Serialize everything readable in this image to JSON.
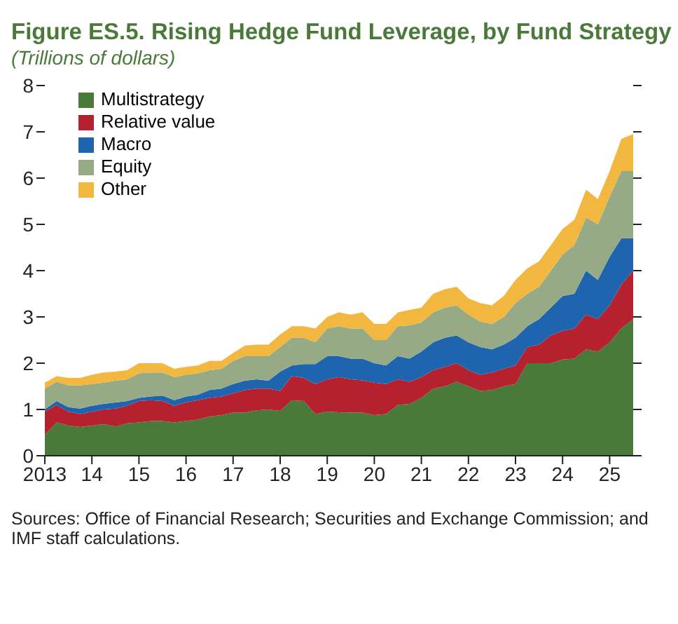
{
  "chart_data": {
    "type": "area",
    "title": "Figure ES.5. Rising Hedge Fund Leverage, by Fund Strategy",
    "subtitle": "(Trillions of dollars)",
    "annotations": [
      "Sources: Office of Financial Research; Securities and Exchange Commission; and IMF staff calculations."
    ],
    "stacked": true,
    "legend": "top left",
    "grid": false,
    "x": [
      2013,
      2013.25,
      2013.5,
      2013.75,
      2014,
      2014.25,
      2014.5,
      2014.75,
      2015,
      2015.25,
      2015.5,
      2015.75,
      2016,
      2016.25,
      2016.5,
      2016.75,
      2017,
      2017.25,
      2017.5,
      2017.75,
      2018,
      2018.25,
      2018.5,
      2018.75,
      2019,
      2019.25,
      2019.5,
      2019.75,
      2020,
      2020.25,
      2020.5,
      2020.75,
      2021,
      2021.25,
      2021.5,
      2021.75,
      2022,
      2022.25,
      2022.5,
      2022.75,
      2023,
      2023.25,
      2023.5,
      2023.75,
      2024,
      2024.25,
      2024.5,
      2024.75,
      2025,
      2025.25,
      2025.5
    ],
    "xlim": [
      2013,
      2025.5
    ],
    "xticks": [
      {
        "value": 2013,
        "label": "2013"
      },
      {
        "value": 2014,
        "label": "14"
      },
      {
        "value": 2015,
        "label": "15"
      },
      {
        "value": 2016,
        "label": "16"
      },
      {
        "value": 2017,
        "label": "17"
      },
      {
        "value": 2018,
        "label": "18"
      },
      {
        "value": 2019,
        "label": "19"
      },
      {
        "value": 2020,
        "label": "20"
      },
      {
        "value": 2021,
        "label": "21"
      },
      {
        "value": 2022,
        "label": "22"
      },
      {
        "value": 2023,
        "label": "23"
      },
      {
        "value": 2024,
        "label": "24"
      },
      {
        "value": 2025,
        "label": "25"
      }
    ],
    "ylim": [
      0,
      8
    ],
    "yticks": [
      0,
      1,
      2,
      3,
      4,
      5,
      6,
      7,
      8
    ],
    "series": [
      {
        "name": "Multistrategy",
        "color": "#4a7a3a",
        "values": [
          0.45,
          0.72,
          0.65,
          0.62,
          0.65,
          0.68,
          0.63,
          0.7,
          0.72,
          0.75,
          0.75,
          0.72,
          0.75,
          0.78,
          0.85,
          0.88,
          0.93,
          0.93,
          0.98,
          1.0,
          0.97,
          1.2,
          1.18,
          0.9,
          0.95,
          0.94,
          0.93,
          0.93,
          0.88,
          0.9,
          1.1,
          1.12,
          1.25,
          1.45,
          1.5,
          1.6,
          1.5,
          1.4,
          1.42,
          1.5,
          1.55,
          2.0,
          2.0,
          2.0,
          2.08,
          2.1,
          2.3,
          2.25,
          2.45,
          2.75,
          2.95
        ]
      },
      {
        "name": "Relative value",
        "color": "#b5212e",
        "values": [
          0.5,
          0.38,
          0.3,
          0.28,
          0.3,
          0.32,
          0.39,
          0.38,
          0.46,
          0.45,
          0.43,
          0.36,
          0.4,
          0.42,
          0.4,
          0.4,
          0.42,
          0.49,
          0.47,
          0.45,
          0.43,
          0.52,
          0.5,
          0.65,
          0.7,
          0.76,
          0.72,
          0.7,
          0.7,
          0.65,
          0.55,
          0.48,
          0.45,
          0.4,
          0.42,
          0.4,
          0.35,
          0.35,
          0.38,
          0.38,
          0.4,
          0.35,
          0.4,
          0.6,
          0.62,
          0.65,
          0.75,
          0.7,
          0.8,
          0.95,
          1.05
        ]
      },
      {
        "name": "Macro",
        "color": "#1f64ae",
        "values": [
          0.05,
          0.08,
          0.1,
          0.12,
          0.13,
          0.12,
          0.13,
          0.1,
          0.07,
          0.08,
          0.12,
          0.12,
          0.13,
          0.12,
          0.17,
          0.17,
          0.2,
          0.2,
          0.2,
          0.17,
          0.42,
          0.23,
          0.3,
          0.43,
          0.5,
          0.45,
          0.45,
          0.47,
          0.42,
          0.4,
          0.5,
          0.5,
          0.55,
          0.6,
          0.63,
          0.6,
          0.6,
          0.6,
          0.5,
          0.52,
          0.6,
          0.45,
          0.55,
          0.6,
          0.75,
          0.75,
          0.95,
          0.85,
          1.05,
          1.0,
          0.7
        ]
      },
      {
        "name": "Equity",
        "color": "#97aa86",
        "values": [
          0.45,
          0.42,
          0.47,
          0.5,
          0.47,
          0.46,
          0.47,
          0.47,
          0.53,
          0.52,
          0.5,
          0.5,
          0.47,
          0.46,
          0.43,
          0.43,
          0.5,
          0.53,
          0.5,
          0.53,
          0.53,
          0.6,
          0.57,
          0.47,
          0.6,
          0.65,
          0.65,
          0.65,
          0.5,
          0.55,
          0.65,
          0.72,
          0.63,
          0.65,
          0.65,
          0.65,
          0.6,
          0.55,
          0.55,
          0.6,
          0.75,
          0.7,
          0.7,
          0.8,
          0.9,
          1.05,
          1.15,
          1.2,
          1.3,
          1.45,
          1.45
        ]
      },
      {
        "name": "Other",
        "color": "#f2b73f",
        "values": [
          0.13,
          0.12,
          0.16,
          0.16,
          0.2,
          0.22,
          0.2,
          0.2,
          0.22,
          0.2,
          0.2,
          0.18,
          0.17,
          0.17,
          0.2,
          0.17,
          0.17,
          0.23,
          0.25,
          0.25,
          0.27,
          0.25,
          0.25,
          0.3,
          0.25,
          0.3,
          0.3,
          0.35,
          0.35,
          0.35,
          0.3,
          0.33,
          0.32,
          0.4,
          0.4,
          0.4,
          0.35,
          0.4,
          0.4,
          0.45,
          0.5,
          0.55,
          0.55,
          0.55,
          0.55,
          0.55,
          0.6,
          0.55,
          0.55,
          0.7,
          0.8
        ]
      }
    ]
  }
}
